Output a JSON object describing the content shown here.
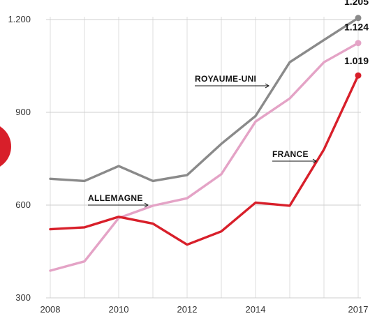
{
  "chart_data": {
    "type": "line",
    "title": "",
    "xlabel": "",
    "ylabel": "",
    "x": [
      2008,
      2009,
      2010,
      2011,
      2012,
      2013,
      2014,
      2015,
      2016,
      2017
    ],
    "x_tick_labels": [
      "2008",
      "2010",
      "2012",
      "2014",
      "2017"
    ],
    "y_tick_labels": [
      "300",
      "600",
      "900",
      "1.200"
    ],
    "ylim": [
      300,
      1200
    ],
    "grid": "vertical lines at each year, horizontal lines at y ticks",
    "series": [
      {
        "name": "ROYAUME-UNI",
        "color": "#8a8a8a",
        "values": [
          685,
          678,
          726,
          678,
          697,
          798,
          888,
          1062,
          1134,
          1205
        ],
        "end_label": "1.205"
      },
      {
        "name": "ALLEMAGNE",
        "color": "#e4a3c6",
        "values": [
          388,
          418,
          558,
          598,
          622,
          700,
          870,
          945,
          1062,
          1124
        ],
        "end_label": "1.124"
      },
      {
        "name": "FRANCE",
        "color": "#d81f2a",
        "values": [
          522,
          528,
          562,
          540,
          472,
          515,
          608,
          598,
          780,
          1019
        ],
        "end_label": "1.019"
      }
    ]
  }
}
